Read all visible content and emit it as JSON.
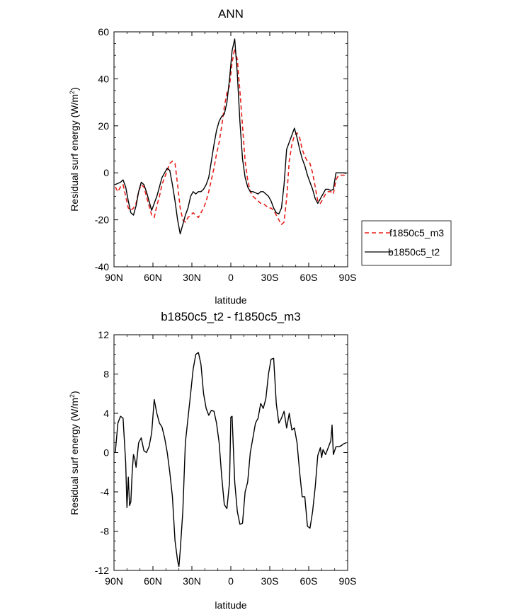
{
  "chart_data": [
    {
      "type": "line",
      "title": "ANN",
      "xlabel": "latitude",
      "ylabel": "Residual surf energy (W/m",
      "ylabel_sup": "2",
      "ylabel_close": ")",
      "xlim": [
        90,
        -90
      ],
      "ylim": [
        -40,
        60
      ],
      "xticks": [
        90,
        60,
        30,
        0,
        -30,
        -60,
        -90
      ],
      "xtick_labels": [
        "90N",
        "60N",
        "30N",
        "0",
        "30S",
        "60S",
        "90S"
      ],
      "yticks": [
        -40,
        -20,
        0,
        20,
        40,
        60
      ],
      "ytick_labels": [
        "-40",
        "-20",
        "0",
        "20",
        "40",
        "60"
      ],
      "legend": [
        {
          "label": "f1850c5_m3",
          "color": "#e8201c",
          "dash": "dashed"
        },
        {
          "label": "b1850c5_t2",
          "color": "#000000",
          "dash": "solid"
        }
      ],
      "series": [
        {
          "name": "f1850c5_m3",
          "color": "#e8201c",
          "dash": "dashed",
          "x": [
            89,
            87,
            85,
            83,
            81,
            79,
            77,
            75,
            73,
            71,
            69,
            67,
            65,
            63,
            61,
            59,
            57,
            55,
            53,
            51,
            49,
            47,
            45,
            43,
            41,
            39,
            37,
            35,
            33,
            31,
            29,
            27,
            25,
            23,
            21,
            19,
            17,
            15,
            13,
            11,
            9,
            7,
            5,
            3,
            1,
            -1,
            -3,
            -5,
            -7,
            -9,
            -11,
            -13,
            -15,
            -17,
            -19,
            -21,
            -23,
            -25,
            -27,
            -29,
            -31,
            -33,
            -35,
            -37,
            -39,
            -41,
            -43,
            -45,
            -47,
            -49,
            -51,
            -53,
            -55,
            -57,
            -59,
            -61,
            -63,
            -65,
            -67,
            -69,
            -71,
            -73,
            -75,
            -77,
            -79,
            -81,
            -83,
            -85,
            -87,
            -89
          ],
          "values": [
            -6,
            -8,
            -6,
            -5,
            -10,
            -15,
            -16,
            -15,
            -13,
            -8,
            -5,
            -6,
            -10,
            -14,
            -18,
            -19,
            -14,
            -10,
            -5,
            -2,
            1,
            4,
            5,
            4,
            -5,
            -15,
            -20,
            -21,
            -19,
            -18,
            -17,
            -18,
            -19,
            -17,
            -15,
            -12,
            -8,
            -3,
            2,
            8,
            13,
            20,
            28,
            34,
            37,
            47,
            53,
            48,
            35,
            20,
            5,
            -3,
            -8,
            -10,
            -11,
            -12,
            -13,
            -13,
            -14,
            -15,
            -15,
            -16,
            -18,
            -20,
            -22,
            -21,
            -11,
            5,
            12,
            16,
            17,
            15,
            10,
            7,
            5,
            4,
            0,
            -6,
            -12,
            -13,
            -11,
            -9,
            -8,
            -8,
            -9,
            -3,
            -1,
            -1,
            -1,
            -1.5
          ]
        },
        {
          "name": "b1850c5_t2",
          "color": "#000000",
          "dash": "solid",
          "x": [
            89,
            87,
            85,
            83,
            81,
            79,
            77,
            75,
            73,
            71,
            69,
            67,
            65,
            63,
            61,
            59,
            57,
            55,
            53,
            51,
            49,
            47,
            45,
            43,
            41,
            39,
            37,
            35,
            33,
            31,
            29,
            27,
            25,
            23,
            21,
            19,
            17,
            15,
            13,
            11,
            9,
            7,
            5,
            3,
            1,
            -1,
            -3,
            -5,
            -7,
            -9,
            -11,
            -13,
            -15,
            -17,
            -19,
            -21,
            -23,
            -25,
            -27,
            -29,
            -31,
            -33,
            -35,
            -37,
            -39,
            -41,
            -43,
            -45,
            -47,
            -49,
            -51,
            -53,
            -55,
            -57,
            -59,
            -61,
            -63,
            -65,
            -67,
            -69,
            -71,
            -73,
            -75,
            -77,
            -79,
            -81,
            -83,
            -85,
            -87,
            -89
          ],
          "values": [
            -5,
            -4.5,
            -4,
            -3,
            -6,
            -12,
            -17,
            -18,
            -14,
            -8,
            -4,
            -5,
            -8,
            -12,
            -16,
            -13,
            -10,
            -6,
            -2,
            0,
            2,
            1,
            -5,
            -12,
            -20,
            -26,
            -22,
            -18,
            -15,
            -10,
            -8,
            -9,
            -8,
            -8,
            -7,
            -5,
            -2,
            5,
            12,
            18,
            22,
            24,
            25,
            30,
            40,
            52,
            57,
            42,
            22,
            6,
            -2,
            -6,
            -8,
            -8,
            -8.5,
            -9,
            -8,
            -8,
            -9,
            -10,
            -12,
            -15,
            -17,
            -17.5,
            -15,
            -5,
            10,
            13,
            16,
            19,
            15,
            10,
            6,
            3,
            -1,
            -4,
            -7,
            -11,
            -13,
            -11,
            -9,
            -7,
            -7,
            -7.5,
            -7,
            0,
            0,
            0,
            0,
            -0.3
          ]
        }
      ]
    },
    {
      "type": "line",
      "title": "b1850c5_t2 - f1850c5_m3",
      "xlabel": "latitude",
      "ylabel": "Residual surf energy (W/m",
      "ylabel_sup": "2",
      "ylabel_close": ")",
      "xlim": [
        90,
        -90
      ],
      "ylim": [
        -12,
        12
      ],
      "xticks": [
        90,
        60,
        30,
        0,
        -30,
        -60,
        -90
      ],
      "xtick_labels": [
        "90N",
        "60N",
        "30N",
        "0",
        "30S",
        "60S",
        "90S"
      ],
      "yticks": [
        -12,
        -8,
        -4,
        0,
        4,
        8,
        12
      ],
      "ytick_labels": [
        "-12",
        "-8",
        "-4",
        "0",
        "4",
        "8",
        "12"
      ],
      "series": [
        {
          "name": "b1850c5_t2 - f1850c5_m3",
          "color": "#000000",
          "dash": "solid",
          "x": [
            89,
            87,
            85,
            83,
            81,
            80,
            79,
            78,
            77,
            76,
            75,
            74,
            73,
            71,
            69,
            67,
            65,
            63,
            61,
            59,
            57,
            55,
            53,
            51,
            49,
            47,
            45,
            43,
            41,
            40,
            39,
            37,
            35,
            33,
            31,
            29,
            27,
            25,
            23,
            21,
            19,
            17,
            15,
            13,
            11,
            9,
            7,
            5,
            3,
            1,
            0,
            -1,
            -3,
            -5,
            -7,
            -9,
            -11,
            -13,
            -15,
            -17,
            -19,
            -21,
            -23,
            -25,
            -27,
            -29,
            -31,
            -33,
            -35,
            -37,
            -39,
            -41,
            -43,
            -45,
            -47,
            -49,
            -51,
            -53,
            -55,
            -57,
            -59,
            -61,
            -63,
            -65,
            -67,
            -69,
            -70,
            -71,
            -73,
            -75,
            -77,
            -78,
            -79,
            -81,
            -83,
            -85,
            -87,
            -89
          ],
          "values": [
            0,
            3,
            3.7,
            3.5,
            -1,
            -5.6,
            -2.5,
            -5.4,
            -5,
            -2,
            -0.2,
            -0.6,
            -1.5,
            1,
            1.5,
            0.2,
            0,
            0.6,
            2,
            5.4,
            4,
            3,
            2.6,
            1.5,
            0,
            -2,
            -4.5,
            -9,
            -11,
            -11.6,
            -10,
            -6,
            1,
            3.5,
            6,
            8.5,
            10,
            10.2,
            9,
            6,
            4.5,
            3.8,
            4.3,
            4.2,
            3,
            1,
            -2.5,
            -5.3,
            -5.7,
            -3,
            3.6,
            3.7,
            -3,
            -6,
            -7.3,
            -7.2,
            -4,
            -3,
            0,
            1.5,
            3,
            3.5,
            5,
            4.5,
            5.5,
            8,
            9.5,
            9.6,
            5,
            3,
            3.5,
            4.2,
            2.5,
            4,
            2.3,
            2.5,
            1,
            -2,
            -4.5,
            -4.5,
            -7.5,
            -7.7,
            -6,
            -3.5,
            -0.3,
            0.5,
            -0.5,
            0.3,
            -0.2,
            0.5,
            1.2,
            2.8,
            -0.2,
            0.6,
            0.6,
            0.7,
            0.9,
            1
          ]
        }
      ]
    }
  ]
}
